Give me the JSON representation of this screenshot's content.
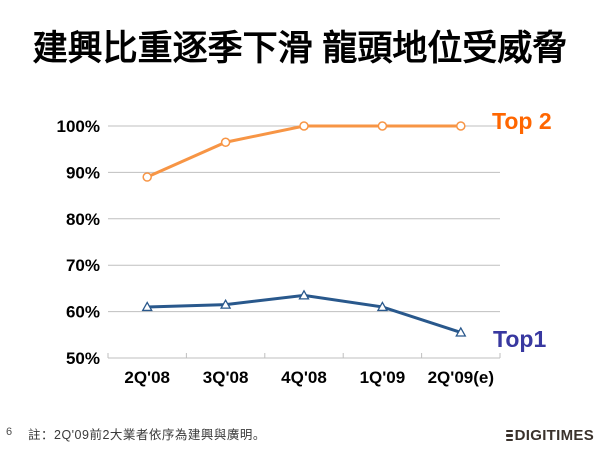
{
  "title": "建興比重逐季下滑 龍頭地位受威脅",
  "footer": {
    "page_number": "6",
    "note": "註：2Q'09前2大業者依序為建興與廣明。",
    "logo_text": "DIGITIMES"
  },
  "chart_data": {
    "type": "line",
    "title": "",
    "xlabel": "",
    "ylabel": "",
    "categories": [
      "2Q'08",
      "3Q'08",
      "4Q'08",
      "1Q'09",
      "2Q'09(e)"
    ],
    "series": [
      {
        "name": "Top 2",
        "values": [
          89,
          96.5,
          100,
          100,
          100
        ],
        "line_color": "#F79545",
        "label_color": "#FF6600",
        "marker": "circle"
      },
      {
        "name": "Top1",
        "values": [
          61,
          61.5,
          63.5,
          61,
          55.5
        ],
        "line_color": "#29588C",
        "label_color": "#3838A0",
        "marker": "triangle"
      }
    ],
    "ylim": [
      50,
      100
    ],
    "ytick_step": 10,
    "ytick_labels": [
      "50%",
      "60%",
      "70%",
      "80%",
      "90%",
      "100%"
    ],
    "grid": "horizontal",
    "grid_color": "#BFBFBF",
    "axis_text_color": "#000000",
    "legend_position": "right-of-line-end"
  }
}
